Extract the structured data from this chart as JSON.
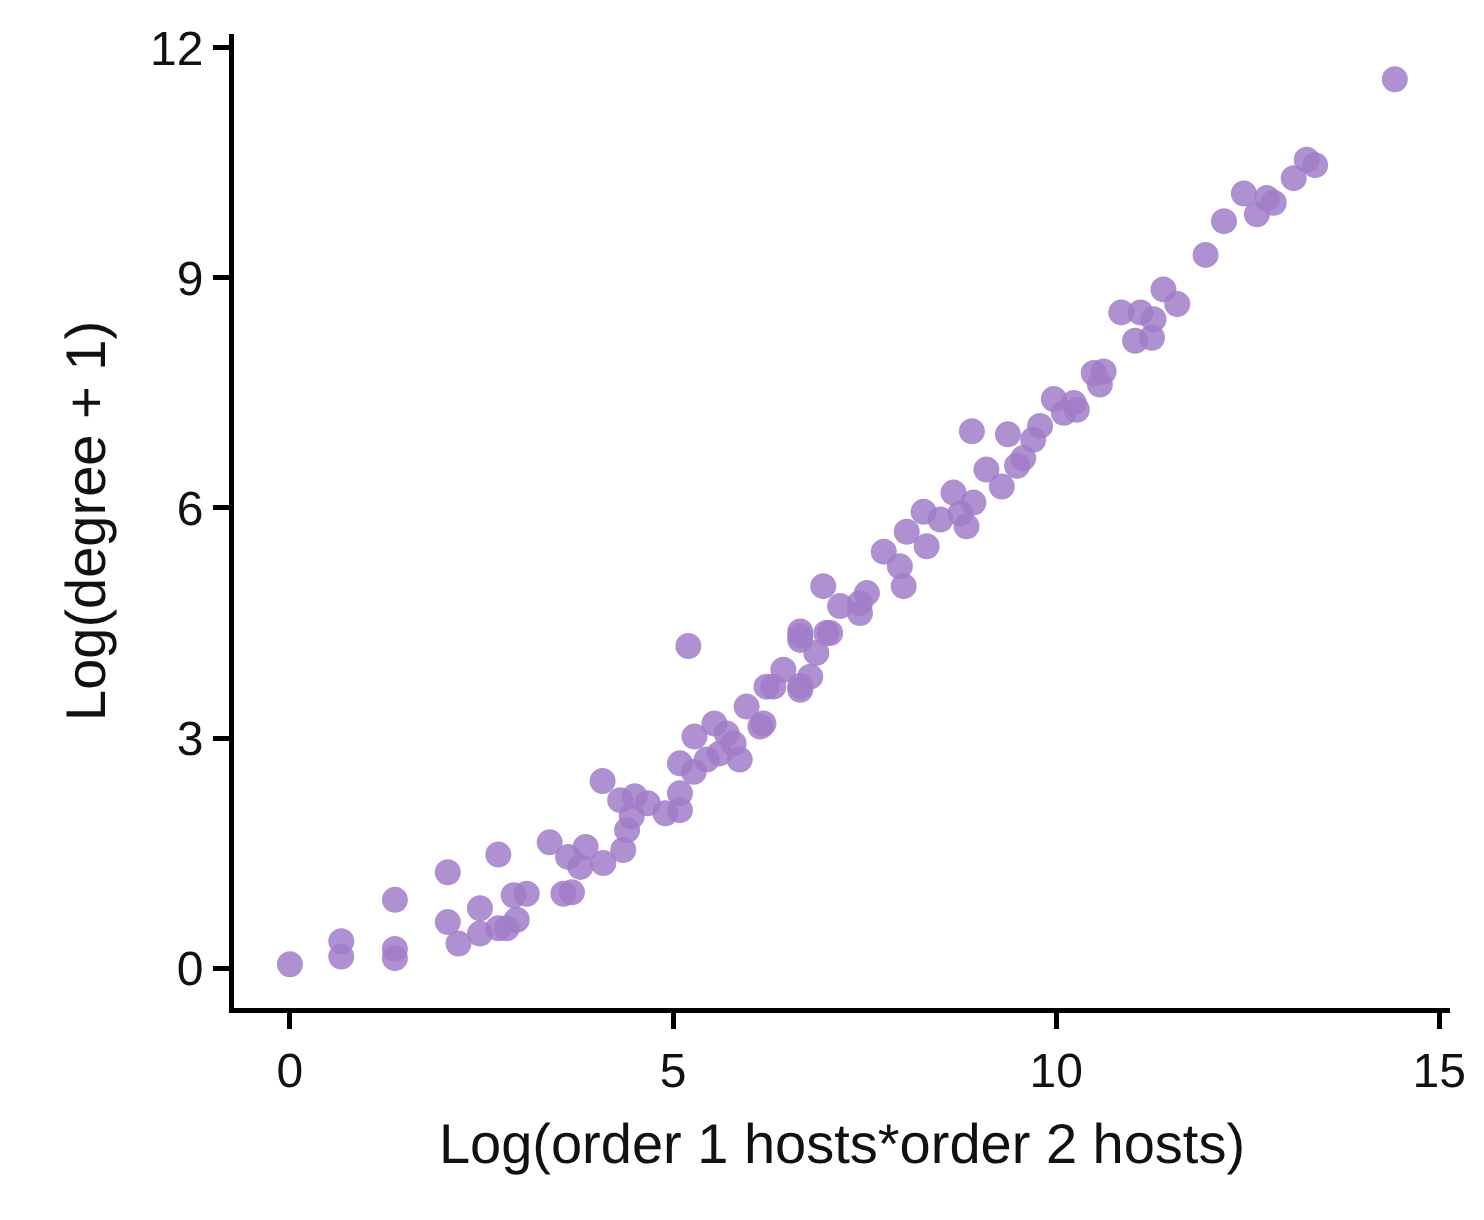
{
  "chart_data": {
    "type": "scatter",
    "xlabel": "Log(order 1 hosts*order 2 hosts)",
    "ylabel": "Log(degree + 1)",
    "xlim": [
      -0.73,
      15.14
    ],
    "xticks": [
      0,
      5,
      10,
      15
    ],
    "ylim": [
      -0.52,
      12.18
    ],
    "yticks": [
      0,
      3,
      6,
      9,
      12
    ],
    "marker": "circle",
    "series": [
      {
        "color": "#a27dc9",
        "x": [
          0,
          0.67,
          0.67,
          1.37,
          1.37,
          1.37,
          2.06,
          2.06,
          2.2,
          2.48,
          2.48,
          2.72,
          2.72,
          2.83,
          2.92,
          2.96,
          3.09,
          3.39,
          3.57,
          3.63,
          3.68,
          3.79,
          3.86,
          4.08,
          4.09,
          4.31,
          4.35,
          4.4,
          4.46,
          4.5,
          4.67,
          4.9,
          5.09,
          5.09,
          5.09,
          5.2,
          5.27,
          5.28,
          5.44,
          5.54,
          5.61,
          5.7,
          5.79,
          5.87,
          5.96,
          6.14,
          6.18,
          6.22,
          6.31,
          6.44,
          6.66,
          6.66,
          6.66,
          6.66,
          6.66,
          6.79,
          6.87,
          6.96,
          7.0,
          7.05,
          7.18,
          7.44,
          7.44,
          7.53,
          7.75,
          7.96,
          8.01,
          8.05,
          8.27,
          8.31,
          8.49,
          8.66,
          8.75,
          8.83,
          8.9,
          8.92,
          9.09,
          9.29,
          9.37,
          9.49,
          9.57,
          9.7,
          9.79,
          9.97,
          10.1,
          10.23,
          10.27,
          10.49,
          10.57,
          10.62,
          10.85,
          11.03,
          11.1,
          11.25,
          11.27,
          11.4,
          11.58,
          11.95,
          12.19,
          12.45,
          12.62,
          12.75,
          12.84,
          13.1,
          13.27,
          13.38,
          14.42
        ],
        "values": [
          0.05,
          0.35,
          0.15,
          0.89,
          0.25,
          0.13,
          1.25,
          0.6,
          0.32,
          0.78,
          0.45,
          1.48,
          0.52,
          0.52,
          0.95,
          0.63,
          0.97,
          1.64,
          0.97,
          1.45,
          0.99,
          1.32,
          1.58,
          2.44,
          1.37,
          2.19,
          1.54,
          1.8,
          1.98,
          2.24,
          2.15,
          2.02,
          2.06,
          2.28,
          2.67,
          4.2,
          2.56,
          3.02,
          2.72,
          3.19,
          2.8,
          3.06,
          2.93,
          2.72,
          3.41,
          3.15,
          3.19,
          3.67,
          3.67,
          3.89,
          3.63,
          4.33,
          3.68,
          4.28,
          4.39,
          3.8,
          4.11,
          4.98,
          4.37,
          4.37,
          4.72,
          4.63,
          4.76,
          4.89,
          5.43,
          5.24,
          4.98,
          5.69,
          5.95,
          5.5,
          5.85,
          6.2,
          5.93,
          5.76,
          7.0,
          6.07,
          6.5,
          6.28,
          6.96,
          6.55,
          6.65,
          6.89,
          7.07,
          7.42,
          7.24,
          7.37,
          7.28,
          7.76,
          7.61,
          7.78,
          8.55,
          8.18,
          8.55,
          8.22,
          8.46,
          8.85,
          8.66,
          9.3,
          9.74,
          10.1,
          9.83,
          10.04,
          9.98,
          10.3,
          10.54,
          10.47,
          11.59
        ]
      }
    ]
  }
}
